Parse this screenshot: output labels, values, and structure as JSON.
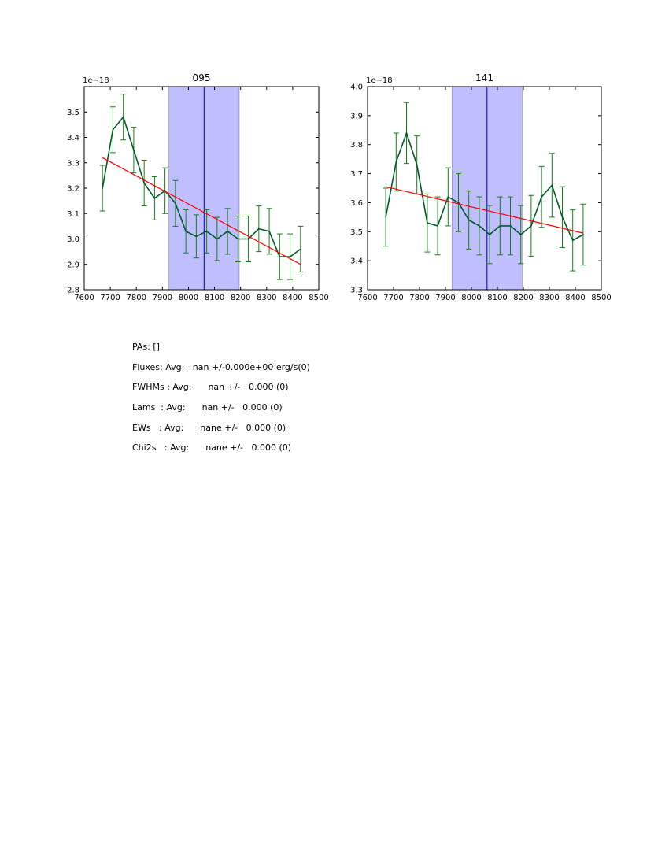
{
  "chart_data": [
    {
      "type": "line",
      "title": "095",
      "offset_label": "1e−18",
      "xlim": [
        7600,
        8500
      ],
      "ylim": [
        2.8,
        3.6
      ],
      "xticks": [
        7600,
        7700,
        7800,
        7900,
        8000,
        8100,
        8200,
        8300,
        8400,
        8500
      ],
      "yticks": [
        2.8,
        2.9,
        3.0,
        3.1,
        3.2,
        3.3,
        3.4,
        3.5
      ],
      "ytick_labels": [
        "2.8",
        "2.9",
        "3.0",
        "3.1",
        "3.2",
        "3.3",
        "3.4",
        "3.5"
      ],
      "x": [
        7670,
        7710,
        7750,
        7790,
        7830,
        7870,
        7910,
        7950,
        7990,
        8030,
        8070,
        8110,
        8150,
        8190,
        8230,
        8270,
        8310,
        8350,
        8390,
        8430
      ],
      "y": [
        3.2,
        3.43,
        3.48,
        3.35,
        3.22,
        3.16,
        3.19,
        3.14,
        3.03,
        3.01,
        3.03,
        3.0,
        3.03,
        3.0,
        3.0,
        3.04,
        3.03,
        2.93,
        2.93,
        2.96
      ],
      "yerr": [
        0.09,
        0.09,
        0.09,
        0.09,
        0.09,
        0.085,
        0.09,
        0.09,
        0.085,
        0.085,
        0.085,
        0.085,
        0.09,
        0.09,
        0.09,
        0.09,
        0.09,
        0.09,
        0.09,
        0.09
      ],
      "fit": {
        "x": [
          7670,
          8430
        ],
        "y": [
          3.32,
          2.9
        ],
        "color": "#ff0000"
      },
      "band": {
        "x": [
          7925,
          8195
        ],
        "color": "#8080ff"
      },
      "vline": {
        "x": 8060,
        "color": "#0000aa"
      },
      "series_color": "#005a28",
      "err_color": "#1a7a1a"
    },
    {
      "type": "line",
      "title": "141",
      "offset_label": "1e−18",
      "xlim": [
        7600,
        8500
      ],
      "ylim": [
        3.3,
        4.0
      ],
      "xticks": [
        7600,
        7700,
        7800,
        7900,
        8000,
        8100,
        8200,
        8300,
        8400,
        8500
      ],
      "yticks": [
        3.3,
        3.4,
        3.5,
        3.6,
        3.7,
        3.8,
        3.9,
        4.0
      ],
      "ytick_labels": [
        "3.3",
        "3.4",
        "3.5",
        "3.6",
        "3.7",
        "3.8",
        "3.9",
        "4.0"
      ],
      "x": [
        7670,
        7710,
        7750,
        7790,
        7830,
        7870,
        7910,
        7950,
        7990,
        8030,
        8070,
        8110,
        8150,
        8190,
        8230,
        8270,
        8310,
        8350,
        8390,
        8430
      ],
      "y": [
        3.55,
        3.74,
        3.84,
        3.73,
        3.53,
        3.52,
        3.62,
        3.6,
        3.54,
        3.52,
        3.49,
        3.52,
        3.52,
        3.49,
        3.52,
        3.62,
        3.66,
        3.55,
        3.47,
        3.49
      ],
      "yerr": [
        0.1,
        0.1,
        0.105,
        0.1,
        0.1,
        0.1,
        0.1,
        0.1,
        0.1,
        0.1,
        0.1,
        0.1,
        0.1,
        0.1,
        0.105,
        0.105,
        0.11,
        0.105,
        0.105,
        0.105
      ],
      "fit": {
        "x": [
          7670,
          8430
        ],
        "y": [
          3.655,
          3.495
        ],
        "color": "#ff0000"
      },
      "band": {
        "x": [
          7925,
          8195
        ],
        "color": "#8080ff"
      },
      "vline": {
        "x": 8060,
        "color": "#0000aa"
      },
      "series_color": "#005a28",
      "err_color": "#1a7a1a"
    }
  ],
  "summary": {
    "pas": "PAs: []",
    "fluxes": "Fluxes: Avg:   nan +/-0.000e+00 erg/s(0)",
    "fwhms": "FWHMs : Avg:      nan +/-   0.000 (0)",
    "lams": "Lams  : Avg:      nan +/-   0.000 (0)",
    "ews": "EWs   : Avg:      nane +/-   0.000 (0)",
    "chi2s": "Chi2s   : Avg:      nane +/-   0.000 (0)"
  }
}
